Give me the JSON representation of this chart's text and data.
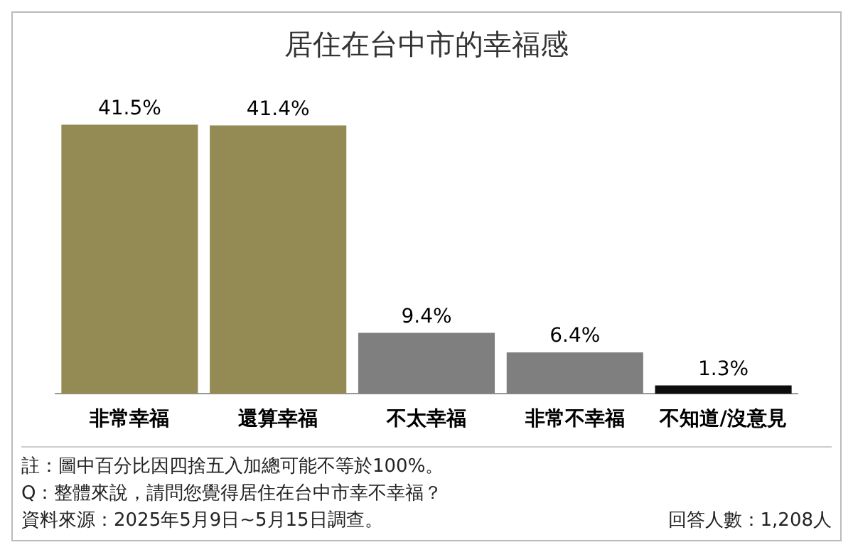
{
  "chart_data": {
    "type": "bar",
    "title": "居住在台中市的幸福感",
    "categories": [
      "非常幸福",
      "還算幸福",
      "不太幸福",
      "非常不幸福",
      "不知道/沒意見"
    ],
    "values": [
      41.5,
      41.4,
      9.4,
      6.4,
      1.3
    ],
    "colors": [
      "#948a54",
      "#948a54",
      "#7f7f7f",
      "#7f7f7f",
      "#0d0d0d"
    ],
    "value_labels": [
      "41.5%",
      "41.4%",
      "9.4%",
      "6.4%",
      "1.3%"
    ],
    "grid": false,
    "legend": false,
    "annotations": [
      "註：圖中百分比因四捨五入加總可能不等於100%。",
      "Q：整體來說，請問您覺得居住在台中市幸不幸福？",
      "資料來源：2025年5月9日~5月15日調查。",
      "回答人數：1,208人"
    ]
  }
}
